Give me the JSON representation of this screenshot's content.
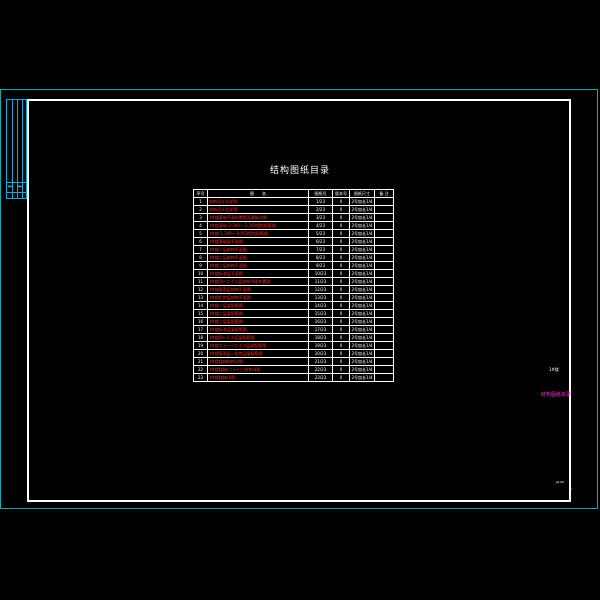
{
  "drawing": {
    "title": "结构图纸目录",
    "headers": [
      "序号",
      "图　　名",
      "图纸号",
      "版本号",
      "图纸尺寸",
      "备 注"
    ],
    "rows": [
      {
        "no": "1",
        "name": "结构设计总说明",
        "page": "1/23",
        "ver": "0",
        "size": "2号加长1/4"
      },
      {
        "no": "2",
        "name": "结构设计总说明",
        "page": "2/23",
        "ver": "0",
        "size": "2号加长1/4"
      },
      {
        "no": "3",
        "name": "1#楼基础平面布置图及基础详图",
        "page": "3/23",
        "ver": "0",
        "size": "2号加长1/4"
      },
      {
        "no": "4",
        "name": "1#楼基础-3.300~-1.300墙柱配筋图",
        "page": "4/23",
        "ver": "0",
        "size": "2号加长1/4"
      },
      {
        "no": "5",
        "name": "1#楼-1.300~-0.050墙柱配筋图",
        "page": "5/23",
        "ver": "0",
        "size": "2号加长1/4"
      },
      {
        "no": "6",
        "name": "1#楼基础梁平面图",
        "page": "6/23",
        "ver": "0",
        "size": "2号加长1/4"
      },
      {
        "no": "7",
        "name": "1#楼一层结构平面图",
        "page": "7/23",
        "ver": "0",
        "size": "2号加长1/4"
      },
      {
        "no": "8",
        "name": "1#楼二层结构平面图",
        "page": "8/23",
        "ver": "0",
        "size": "2号加长1/4"
      },
      {
        "no": "9",
        "name": "1#楼三层结构平面图",
        "page": "9/23",
        "ver": "0",
        "size": "2号加长1/4"
      },
      {
        "no": "10",
        "name": "1#楼标准层平面图",
        "page": "10/23",
        "ver": "0",
        "size": "2号加长1/4"
      },
      {
        "no": "11",
        "name": "1#楼四~二十二层结构平面布置图",
        "page": "11/23",
        "ver": "0",
        "size": "2号加长1/4"
      },
      {
        "no": "12",
        "name": "1#楼屋面层结构平面图",
        "page": "12/23",
        "ver": "0",
        "size": "2号加长1/4"
      },
      {
        "no": "13",
        "name": "1#楼机房层结构平面图",
        "page": "13/23",
        "ver": "0",
        "size": "2号加长1/4"
      },
      {
        "no": "14",
        "name": "1#楼一层梁配筋图",
        "page": "14/23",
        "ver": "0",
        "size": "2号加长1/4"
      },
      {
        "no": "15",
        "name": "1#楼二层梁配筋图",
        "page": "15/23",
        "ver": "0",
        "size": "2号加长1/4"
      },
      {
        "no": "16",
        "name": "1#楼三层梁配筋图",
        "page": "16/23",
        "ver": "0",
        "size": "2号加长1/4"
      },
      {
        "no": "17",
        "name": "1#楼标准层梁配筋图",
        "page": "17/23",
        "ver": "0",
        "size": "2号加长1/4"
      },
      {
        "no": "18",
        "name": "1#楼四~二十层梁配筋图",
        "page": "18/23",
        "ver": "0",
        "size": "2号加长1/4"
      },
      {
        "no": "19",
        "name": "1#楼二十一~二十二层梁配筋图",
        "page": "19/23",
        "ver": "0",
        "size": "2号加长1/4"
      },
      {
        "no": "20",
        "name": "1#楼屋面层~机房层梁配筋图",
        "page": "20/23",
        "ver": "0",
        "size": "2号加长1/4"
      },
      {
        "no": "21",
        "name": "1#楼楼梯结构详图",
        "page": "21/23",
        "ver": "0",
        "size": "2号加长1/4"
      },
      {
        "no": "22",
        "name": "1#楼楼梯(二)~(三)结构详图",
        "page": "22/23",
        "ver": "0",
        "size": "2号加长1/4"
      },
      {
        "no": "23",
        "name": "1#楼楼梯详图",
        "page": "23/23",
        "ver": "0",
        "size": "2号加长1/4"
      }
    ]
  },
  "titleblock": {
    "project": "1#楼",
    "sheet_name": "结构图纸目录",
    "code": "JG-00",
    "num": "1"
  },
  "colors": {
    "frame": "#ffffff",
    "outer": "#1aa7a7",
    "name_text": "#ff2828",
    "magenta": "#ff2bd6"
  }
}
